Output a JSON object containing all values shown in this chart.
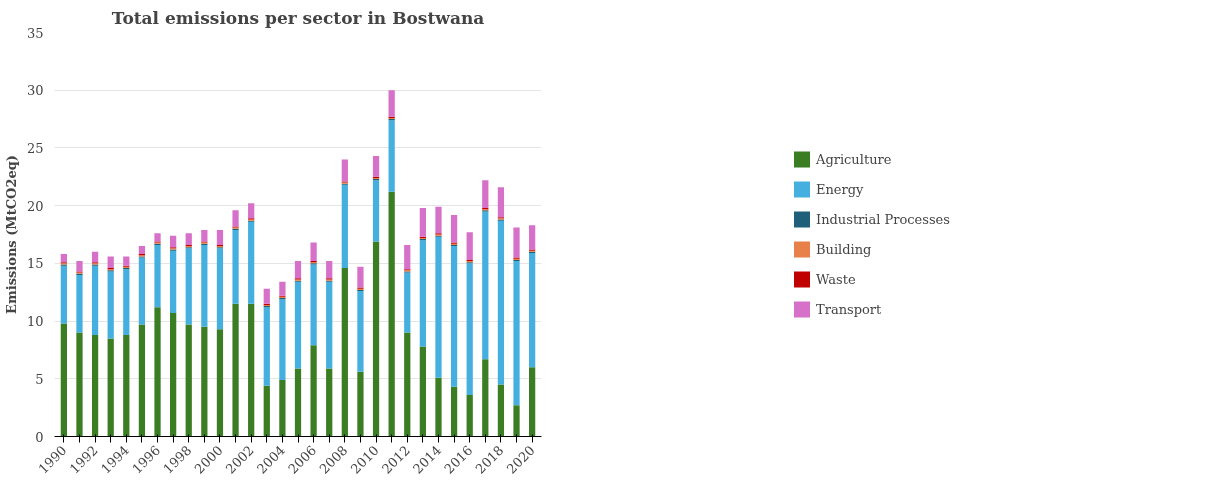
{
  "chart_data": {
    "type": "bar",
    "stacked": true,
    "title": "Total emissions per sector in Bostwana",
    "ylabel": "Emissions (MtCO2eq)",
    "categories": [
      "1990",
      null,
      "1992",
      null,
      "1994",
      null,
      "1996",
      null,
      "1998",
      null,
      "2000",
      null,
      "2002",
      null,
      "2004",
      null,
      "2006",
      null,
      "2008",
      null,
      "2010",
      null,
      "2012",
      null,
      "2014",
      null,
      "2016",
      null,
      "2018",
      null,
      "2020"
    ],
    "ylim": [
      0,
      35
    ],
    "yticks": [
      0,
      5,
      10,
      15,
      20,
      25,
      30,
      35
    ],
    "grid": "y",
    "legend": "right",
    "series": [
      {
        "name": "Agriculture",
        "color": "#3a7d22",
        "values": [
          9.8,
          9.0,
          8.8,
          8.5,
          8.8,
          9.7,
          11.2,
          10.7,
          9.7,
          9.5,
          9.3,
          11.5,
          11.5,
          4.4,
          4.9,
          5.9,
          7.9,
          5.9,
          14.6,
          5.6,
          16.9,
          21.2,
          9.0,
          7.8,
          5.1,
          4.3,
          3.6,
          6.7,
          4.5,
          2.7,
          6.0
        ]
      },
      {
        "name": "Energy",
        "color": "#45b0e0",
        "values": [
          5.0,
          5.0,
          6.0,
          5.8,
          5.7,
          5.8,
          5.4,
          5.4,
          6.6,
          7.1,
          7.0,
          6.4,
          7.1,
          6.8,
          7.0,
          7.5,
          7.0,
          7.5,
          7.2,
          7.0,
          5.3,
          6.2,
          5.2,
          9.2,
          12.2,
          12.2,
          11.4,
          12.8,
          14.2,
          12.5,
          9.9
        ]
      },
      {
        "name": "Industrial Processes",
        "color": "#1f5f7a",
        "values": [
          0.1,
          0.1,
          0.1,
          0.1,
          0.1,
          0.1,
          0.1,
          0.1,
          0.1,
          0.1,
          0.1,
          0.1,
          0.1,
          0.1,
          0.1,
          0.1,
          0.1,
          0.1,
          0.1,
          0.1,
          0.1,
          0.1,
          0.1,
          0.1,
          0.1,
          0.1,
          0.1,
          0.1,
          0.1,
          0.1,
          0.1
        ]
      },
      {
        "name": "Building",
        "color": "#e8804a",
        "values": [
          0.1,
          0.1,
          0.1,
          0.1,
          0.1,
          0.1,
          0.1,
          0.1,
          0.1,
          0.1,
          0.1,
          0.1,
          0.1,
          0.1,
          0.1,
          0.1,
          0.1,
          0.1,
          0.1,
          0.1,
          0.1,
          0.1,
          0.1,
          0.1,
          0.1,
          0.1,
          0.1,
          0.1,
          0.1,
          0.1,
          0.1
        ]
      },
      {
        "name": "Waste",
        "color": "#c00000",
        "values": [
          0.1,
          0.1,
          0.1,
          0.1,
          0.1,
          0.1,
          0.1,
          0.1,
          0.1,
          0.1,
          0.1,
          0.1,
          0.1,
          0.1,
          0.1,
          0.1,
          0.1,
          0.1,
          0.1,
          0.1,
          0.1,
          0.1,
          0.1,
          0.1,
          0.1,
          0.1,
          0.1,
          0.1,
          0.1,
          0.1,
          0.1
        ]
      },
      {
        "name": "Transport",
        "color": "#d670c8",
        "values": [
          0.7,
          0.9,
          0.9,
          1.0,
          0.8,
          0.7,
          0.7,
          1.0,
          1.0,
          1.0,
          1.3,
          1.4,
          1.3,
          1.3,
          1.2,
          1.5,
          1.6,
          1.5,
          1.9,
          1.8,
          1.8,
          2.3,
          2.1,
          2.5,
          2.3,
          2.4,
          2.4,
          2.4,
          2.6,
          2.6,
          2.1
        ]
      }
    ]
  }
}
